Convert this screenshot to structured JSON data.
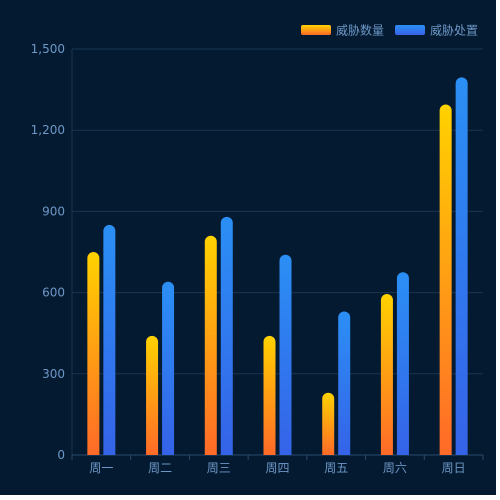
{
  "chart_data": {
    "type": "bar",
    "categories": [
      "周一",
      "周二",
      "周三",
      "周四",
      "周五",
      "周六",
      "周日"
    ],
    "series": [
      {
        "name": "威胁数量",
        "values": [
          750,
          440,
          810,
          440,
          230,
          595,
          1295
        ],
        "color_top": "#ffd200",
        "color_bottom": "#ff6a28"
      },
      {
        "name": "威胁处置",
        "values": [
          850,
          640,
          880,
          740,
          530,
          675,
          1395
        ],
        "color_top": "#2b8ff5",
        "color_bottom": "#3563e8"
      }
    ],
    "ylim": [
      0,
      1500
    ],
    "yticks": [
      0,
      300,
      600,
      900,
      1200,
      1500
    ],
    "ytick_labels": [
      "0",
      "300",
      "600",
      "900",
      "1,200",
      "1,500"
    ],
    "grid": true,
    "legend_position": "top-right"
  },
  "colors": {
    "background": "#041a30",
    "grid": "#1a3552",
    "axis_text": "#6d97c7"
  }
}
